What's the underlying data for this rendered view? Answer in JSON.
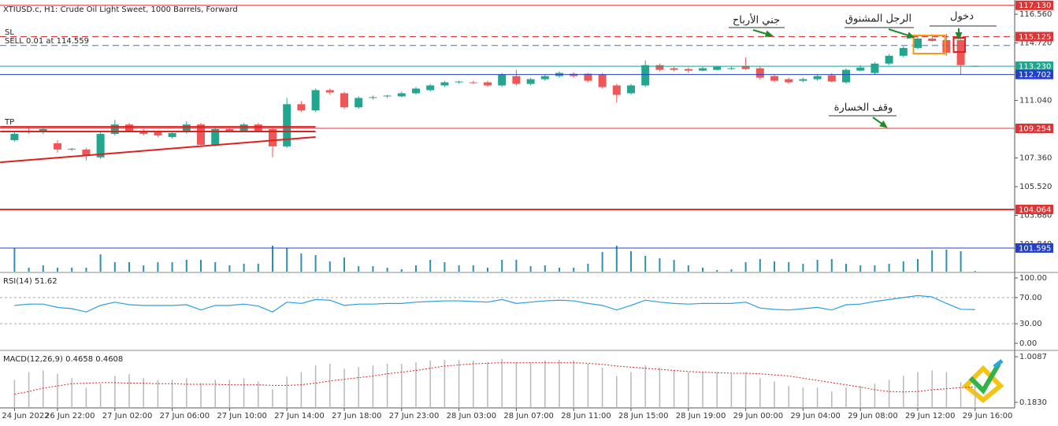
{
  "chart_data": [
    {
      "type": "candlestick",
      "title": "XTIUSD.c, H1:  Crude Oil Light Sweet, 1000 Barrels, Forward",
      "texts": [
        "SL",
        "SELL 0.01 at 114.559",
        "TP"
      ],
      "categories": [
        "24 Jun 2022",
        null,
        null,
        "26 Jun 22:00",
        null,
        null,
        null,
        "27 Jun 02:00",
        null,
        null,
        null,
        "27 Jun 06:00",
        null,
        null,
        null,
        "27 Jun 10:00",
        null,
        null,
        null,
        "27 Jun 14:00",
        null,
        null,
        null,
        "27 Jun 18:00",
        null,
        null,
        null,
        "27 Jun 23:00",
        null,
        null,
        null,
        "28 Jun 03:00",
        null,
        null,
        null,
        "28 Jun 07:00",
        null,
        null,
        null,
        "28 Jun 11:00",
        null,
        null,
        null,
        "28 Jun 15:00",
        null,
        null,
        null,
        "28 Jun 19:00",
        null,
        null,
        null,
        "29 Jun 00:00",
        null,
        null,
        null,
        "29 Jun 04:00",
        null,
        null,
        null,
        "29 Jun 08:00",
        null,
        null,
        null,
        "29 Jun 12:00",
        null,
        null,
        null,
        "29 Jun 16:00"
      ],
      "open": [
        108.5,
        109.1,
        109.0,
        108.3,
        107.9,
        107.9,
        107.4,
        108.9,
        109.5,
        109.1,
        109.0,
        108.7,
        109.0,
        109.5,
        108.2,
        109.2,
        109.1,
        109.5,
        109.2,
        108.1,
        110.8,
        110.4,
        111.7,
        111.5,
        110.6,
        111.2,
        111.3,
        111.3,
        111.5,
        111.7,
        112.0,
        112.2,
        112.2,
        112.2,
        112.0,
        112.6,
        112.1,
        112.4,
        112.6,
        112.75,
        112.75,
        112.7,
        112.0,
        111.5,
        112.0,
        113.3,
        113.1,
        113.05,
        112.95,
        113.0,
        113.1,
        113.25,
        113.1,
        112.6,
        112.4,
        112.3,
        112.4,
        112.65,
        112.2,
        112.95,
        112.8,
        113.4,
        113.9,
        114.4,
        115.0,
        114.9,
        114.9,
        113.25
      ],
      "high": [
        109.1,
        109.3,
        109.3,
        108.5,
        108.0,
        108.0,
        109.0,
        109.8,
        109.6,
        109.2,
        109.1,
        109.0,
        109.7,
        109.6,
        109.3,
        109.3,
        109.6,
        109.6,
        109.3,
        111.2,
        111.0,
        111.8,
        111.8,
        111.6,
        111.3,
        111.35,
        111.4,
        111.6,
        111.9,
        112.1,
        112.3,
        112.3,
        112.3,
        112.3,
        112.8,
        113.0,
        112.5,
        112.7,
        112.9,
        112.85,
        112.8,
        112.8,
        112.1,
        112.1,
        113.6,
        113.4,
        113.2,
        113.15,
        113.2,
        113.25,
        113.2,
        113.8,
        113.2,
        112.7,
        112.5,
        112.5,
        112.7,
        112.8,
        113.1,
        113.3,
        113.5,
        114.0,
        114.5,
        115.2,
        115.1,
        115.3,
        115.4,
        113.25
      ],
      "low": [
        108.4,
        108.9,
        108.9,
        107.7,
        107.8,
        107.2,
        107.3,
        108.8,
        109.0,
        108.8,
        108.7,
        108.6,
        108.9,
        108.1,
        108.1,
        109.0,
        109.0,
        109.0,
        107.4,
        108.0,
        110.3,
        110.3,
        111.4,
        110.5,
        110.5,
        111.1,
        111.2,
        111.25,
        111.4,
        111.6,
        111.9,
        112.1,
        112.1,
        111.9,
        111.9,
        112.0,
        112.0,
        112.3,
        112.5,
        112.5,
        112.2,
        111.8,
        110.9,
        111.4,
        111.9,
        112.9,
        112.9,
        112.8,
        112.9,
        112.95,
        113.0,
        113.0,
        112.4,
        112.2,
        112.1,
        112.2,
        112.3,
        112.2,
        112.1,
        112.9,
        112.7,
        113.3,
        113.8,
        114.3,
        114.8,
        113.9,
        112.7,
        113.2
      ],
      "close": [
        108.9,
        109.0,
        109.2,
        107.9,
        107.95,
        107.5,
        108.9,
        109.5,
        109.1,
        108.9,
        108.8,
        108.95,
        109.5,
        108.2,
        109.2,
        109.1,
        109.5,
        109.1,
        108.1,
        110.8,
        110.4,
        111.7,
        111.55,
        110.6,
        111.2,
        111.25,
        111.35,
        111.5,
        111.8,
        112.0,
        112.2,
        112.25,
        112.15,
        112.0,
        112.7,
        112.1,
        112.4,
        112.6,
        112.8,
        112.6,
        112.3,
        111.9,
        111.4,
        112.0,
        113.3,
        113.0,
        113.0,
        112.95,
        113.1,
        113.2,
        113.1,
        113.05,
        112.5,
        112.3,
        112.2,
        112.4,
        112.6,
        112.25,
        113.0,
        113.15,
        113.4,
        113.9,
        114.4,
        115.0,
        114.85,
        114.1,
        113.3,
        113.23
      ],
      "volume": [
        30,
        5,
        8,
        5,
        5,
        5,
        22,
        12,
        12,
        8,
        12,
        12,
        15,
        15,
        12,
        8,
        10,
        10,
        33,
        30,
        23,
        21,
        13,
        18,
        7,
        7,
        5,
        3,
        8,
        15,
        12,
        8,
        8,
        5,
        15,
        15,
        7,
        8,
        5,
        5,
        10,
        25,
        33,
        26,
        20,
        17,
        15,
        8,
        5,
        2,
        3,
        12,
        16,
        13,
        12,
        10,
        15,
        16,
        10,
        8,
        8,
        10,
        13,
        16,
        27,
        28,
        26,
        1
      ],
      "up_color": "#22a68f",
      "down_color": "#ef5656",
      "volume_color": "#2a8fb0",
      "ylim": [
        100.08,
        117.47
      ],
      "yticks": [
        {
          "value": 116.56,
          "label": "116.560"
        },
        {
          "value": 114.72,
          "label": "114.720"
        },
        {
          "value": 111.04,
          "label": "111.040"
        },
        {
          "value": 107.36,
          "label": "107.360"
        },
        {
          "value": 105.52,
          "label": "105.520"
        },
        {
          "value": 103.68,
          "label": "103.680"
        },
        {
          "value": 101.84,
          "label": "101.840"
        }
      ],
      "levels": [
        {
          "value": 117.13,
          "label": "117.130",
          "color": "#e03434",
          "dash": false,
          "width": 1
        },
        {
          "value": 115.125,
          "label": "115.125",
          "color": "#e03434",
          "dash": true,
          "width": 1
        },
        {
          "value": 114.559,
          "color": "#2b7fd0",
          "dash": true,
          "width": 1
        },
        {
          "value": 113.23,
          "label": "113.230",
          "color": "#1ea58e",
          "dash": false,
          "width": 1
        },
        {
          "value": 112.702,
          "label": "112.702",
          "color": "#2540c8",
          "dash": false,
          "width": 1
        },
        {
          "value": 109.254,
          "label": "109.254",
          "color": "#e03434",
          "dash": false,
          "width": 1
        },
        {
          "value": 104.064,
          "label": "104.064",
          "color": "#e03434",
          "dash": false,
          "width": 2
        },
        {
          "value": 101.595,
          "label": "101.595",
          "color": "#2540c8",
          "dash": false,
          "width": 1
        }
      ],
      "trend_lines": [
        {
          "x": [
            -1,
            21
          ],
          "y": [
            107.08,
            108.7
          ],
          "color": "#e02020"
        },
        {
          "x": [
            -1,
            21
          ],
          "y": [
            109.35,
            109.35
          ],
          "color": "#e02020"
        },
        {
          "x": [
            -1,
            21
          ],
          "y": [
            109.05,
            109.05
          ],
          "color": "#e02020"
        }
      ],
      "boxes": [
        {
          "x": [
            62.7,
            64.9
          ],
          "y": [
            114.04,
            115.2
          ],
          "color": "#f39a1a"
        },
        {
          "x": [
            65.5,
            66.3
          ],
          "y": [
            114.14,
            115.05
          ],
          "color": "#e02020"
        }
      ],
      "annotations": [
        "جني الأرباح",
        "الرجل المشنوق",
        "دخول",
        "وقف الخسارة"
      ]
    },
    {
      "type": "line",
      "title": "RSI(14) 51.62",
      "series": [
        {
          "color": "#2a9fe0",
          "values": [
            58,
            60,
            60,
            55,
            53,
            48,
            58,
            63,
            59,
            58,
            58,
            58,
            59,
            51,
            58,
            58,
            60,
            57,
            48,
            63,
            61,
            67,
            66,
            58,
            60,
            60,
            61,
            61,
            63,
            64,
            65,
            65,
            64,
            63,
            67,
            61,
            63,
            65,
            66,
            65,
            61,
            58,
            51,
            58,
            66,
            63,
            61,
            60,
            61,
            61,
            61,
            63,
            54,
            52,
            51,
            53,
            55,
            51,
            59,
            60,
            64,
            67,
            70,
            73,
            71,
            61,
            52,
            51.62
          ]
        }
      ],
      "ylim": [
        -7.2,
        107.2
      ],
      "yticks": [
        {
          "value": 100,
          "label": "100.00"
        },
        {
          "value": 70,
          "label": "70.00"
        },
        {
          "value": 30,
          "label": "30.00"
        },
        {
          "value": 0,
          "label": "0.00"
        }
      ],
      "grid_dash": [
        70,
        30
      ]
    },
    {
      "type": "macd",
      "title": "MACD(12,26,9) 0.4658 0.4608",
      "series": [
        {
          "kind": "bar",
          "color": "#b8b8b8",
          "values": [
            0.59,
            0.73,
            0.76,
            0.7,
            0.62,
            0.45,
            0.52,
            0.66,
            0.69,
            0.62,
            0.59,
            0.59,
            0.62,
            0.53,
            0.59,
            0.59,
            0.62,
            0.56,
            0.42,
            0.65,
            0.73,
            0.85,
            0.88,
            0.79,
            0.82,
            0.85,
            0.88,
            0.88,
            0.91,
            0.94,
            0.95,
            0.95,
            0.94,
            0.91,
            0.97,
            0.91,
            0.91,
            0.94,
            0.95,
            0.94,
            0.88,
            0.81,
            0.66,
            0.73,
            0.85,
            0.81,
            0.76,
            0.73,
            0.73,
            0.73,
            0.7,
            0.73,
            0.62,
            0.56,
            0.48,
            0.45,
            0.45,
            0.38,
            0.45,
            0.48,
            0.52,
            0.59,
            0.66,
            0.73,
            0.76,
            0.73,
            0.55,
            0.4658
          ]
        },
        {
          "kind": "line",
          "color": "#e02020",
          "values": [
            0.33,
            0.38,
            0.44,
            0.48,
            0.52,
            0.53,
            0.54,
            0.54,
            0.53,
            0.53,
            0.52,
            0.52,
            0.51,
            0.51,
            0.51,
            0.5,
            0.5,
            0.5,
            0.49,
            0.49,
            0.5,
            0.53,
            0.57,
            0.6,
            0.63,
            0.66,
            0.7,
            0.73,
            0.76,
            0.8,
            0.84,
            0.86,
            0.88,
            0.89,
            0.9,
            0.9,
            0.9,
            0.9,
            0.9,
            0.9,
            0.89,
            0.87,
            0.84,
            0.82,
            0.8,
            0.78,
            0.76,
            0.74,
            0.73,
            0.72,
            0.71,
            0.71,
            0.7,
            0.68,
            0.66,
            0.62,
            0.58,
            0.54,
            0.5,
            0.46,
            0.41,
            0.38,
            0.37,
            0.38,
            0.41,
            0.43,
            0.45,
            0.4608
          ]
        }
      ],
      "ylim": [
        0.083,
        1.094
      ],
      "yticks": [
        1.0087,
        {
          "value": 0.183,
          "label": "0.1830"
        }
      ]
    }
  ]
}
